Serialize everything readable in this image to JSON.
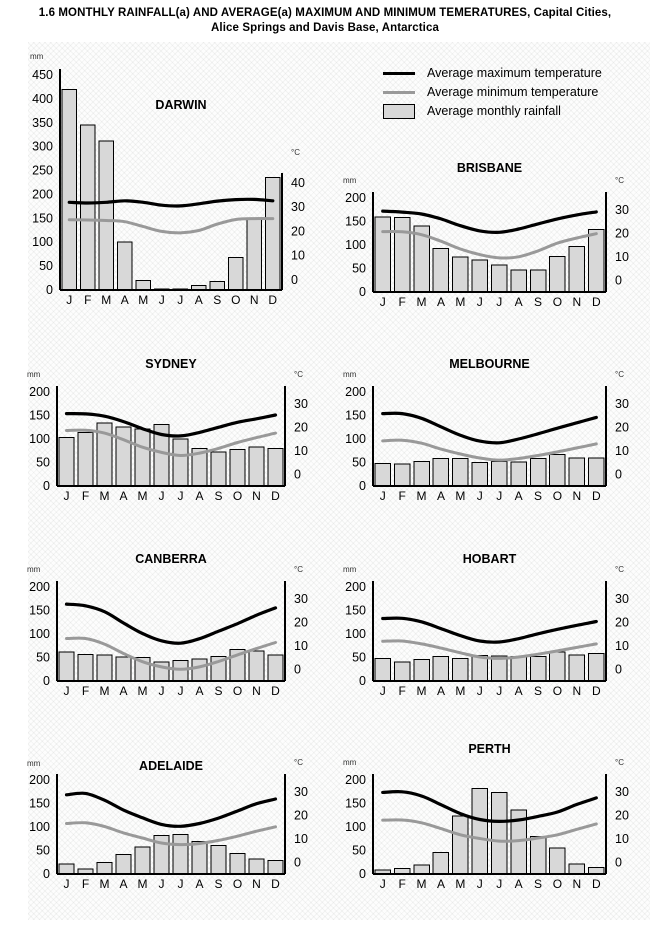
{
  "page_title": {
    "line1": "1.6 MONTHLY RAINFALL(a) AND AVERAGE(a) MAXIMUM AND MINIMUM TEMERATURES, Capital Cities,",
    "line2": "Alice Springs and Davis Base, Antarctica"
  },
  "legend": {
    "max_label": "Average maximum temperature",
    "min_label": "Average minimum temperature",
    "rain_label": "Average monthly rainfall"
  },
  "months": [
    "J",
    "F",
    "M",
    "A",
    "M",
    "J",
    "J",
    "A",
    "S",
    "O",
    "N",
    "D"
  ],
  "units": {
    "left": "mm",
    "right": "°C"
  },
  "colors": {
    "max_line": "#000000",
    "min_line": "#999999",
    "bar_fill": "#d8d8d8",
    "bar_stroke": "#000000",
    "axis": "#000000",
    "panel_bg": "#fdfdfd"
  },
  "chart_data": [
    {
      "type": "bar+line",
      "name": "DARWIN",
      "left_axis": {
        "label": "mm",
        "ticks": [
          0,
          50,
          100,
          150,
          200,
          250,
          300,
          350,
          400,
          450
        ],
        "max": 450
      },
      "right_axis": {
        "label": "°C",
        "ticks": [
          0,
          10,
          20,
          30,
          40
        ],
        "zero_mm": 21,
        "mm_per_deg": 5.08
      },
      "rainfall_mm": [
        420,
        345,
        312,
        100,
        20,
        2,
        1,
        9,
        18,
        68,
        150,
        235
      ],
      "tmax_c": [
        32.0,
        31.7,
        32.0,
        32.6,
        32.0,
        30.8,
        30.5,
        31.4,
        32.5,
        33.1,
        33.2,
        32.6
      ],
      "tmin_c": [
        24.8,
        24.7,
        24.5,
        24.0,
        22.0,
        20.0,
        19.4,
        20.4,
        23.0,
        24.9,
        25.3,
        25.3
      ]
    },
    {
      "type": "bar+line",
      "name": "BRISBANE",
      "left_axis": {
        "label": "mm",
        "ticks": [
          0,
          50,
          100,
          150,
          200
        ],
        "max": 200
      },
      "right_axis": {
        "label": "°C",
        "ticks": [
          0,
          10,
          20,
          30
        ],
        "zero_mm": 25,
        "mm_per_deg": 5
      },
      "rainfall_mm": [
        160,
        158,
        140,
        93,
        74,
        68,
        57,
        47,
        47,
        76,
        97,
        133
      ],
      "tmax_c": [
        29.4,
        29.0,
        28.2,
        26.1,
        23.2,
        21.0,
        20.4,
        21.8,
        24.0,
        26.1,
        27.8,
        29.1
      ],
      "tmin_c": [
        20.7,
        20.6,
        19.4,
        16.6,
        13.3,
        10.9,
        9.5,
        10.0,
        12.5,
        15.8,
        18.0,
        19.8
      ]
    },
    {
      "type": "bar+line",
      "name": "SYDNEY",
      "left_axis": {
        "label": "mm",
        "ticks": [
          0,
          50,
          100,
          150,
          200
        ],
        "max": 200
      },
      "right_axis": {
        "label": "°C",
        "ticks": [
          0,
          10,
          20,
          30
        ],
        "zero_mm": 25,
        "mm_per_deg": 5
      },
      "rainfall_mm": [
        103,
        114,
        134,
        126,
        121,
        131,
        100,
        80,
        72,
        78,
        83,
        80
      ],
      "tmax_c": [
        25.8,
        25.7,
        24.7,
        22.4,
        19.4,
        16.9,
        16.3,
        17.8,
        20.0,
        22.1,
        23.6,
        25.2
      ],
      "tmin_c": [
        18.6,
        18.7,
        17.5,
        14.7,
        11.5,
        9.3,
        8.0,
        9.0,
        11.0,
        13.5,
        15.6,
        17.5
      ]
    },
    {
      "type": "bar+line",
      "name": "MELBOURNE",
      "left_axis": {
        "label": "mm",
        "ticks": [
          0,
          50,
          100,
          150,
          200
        ],
        "max": 200
      },
      "right_axis": {
        "label": "°C",
        "ticks": [
          0,
          10,
          20,
          30
        ],
        "zero_mm": 25,
        "mm_per_deg": 5
      },
      "rainfall_mm": [
        48,
        47,
        52,
        58,
        58,
        50,
        52,
        51,
        59,
        67,
        60,
        60
      ],
      "tmax_c": [
        25.8,
        25.8,
        23.8,
        20.2,
        16.6,
        14.1,
        13.4,
        15.0,
        17.2,
        19.6,
        21.9,
        24.2
      ],
      "tmin_c": [
        14.2,
        14.5,
        13.2,
        10.7,
        8.6,
        6.9,
        6.0,
        6.7,
        8.0,
        9.5,
        11.2,
        12.9
      ]
    },
    {
      "type": "bar+line",
      "name": "CANBERRA",
      "left_axis": {
        "label": "mm",
        "ticks": [
          0,
          50,
          100,
          150,
          200
        ],
        "max": 200
      },
      "right_axis": {
        "label": "°C",
        "ticks": [
          0,
          10,
          20,
          30
        ],
        "zero_mm": 25,
        "mm_per_deg": 5
      },
      "rainfall_mm": [
        62,
        56,
        55,
        51,
        50,
        40,
        44,
        47,
        52,
        67,
        64,
        55
      ],
      "tmax_c": [
        27.7,
        27.0,
        24.5,
        19.7,
        15.2,
        12.1,
        11.1,
        13.0,
        16.2,
        19.4,
        23.0,
        26.1
      ],
      "tmin_c": [
        13.1,
        13.1,
        10.7,
        6.7,
        3.2,
        1.0,
        0.0,
        1.0,
        3.3,
        6.1,
        8.8,
        11.4
      ]
    },
    {
      "type": "bar+line",
      "name": "HOBART",
      "left_axis": {
        "label": "mm",
        "ticks": [
          0,
          50,
          100,
          150,
          200
        ],
        "max": 200
      },
      "right_axis": {
        "label": "°C",
        "ticks": [
          0,
          10,
          20,
          30
        ],
        "zero_mm": 25,
        "mm_per_deg": 5
      },
      "rainfall_mm": [
        48,
        40,
        46,
        52,
        48,
        54,
        53,
        52,
        52,
        62,
        55,
        58
      ],
      "tmax_c": [
        21.6,
        21.7,
        20.2,
        17.3,
        14.3,
        12.0,
        11.6,
        13.0,
        15.1,
        17.0,
        18.7,
        20.3
      ],
      "tmin_c": [
        11.9,
        12.0,
        10.8,
        9.0,
        7.0,
        5.2,
        4.6,
        5.2,
        6.4,
        7.8,
        9.3,
        10.8
      ]
    },
    {
      "type": "bar+line",
      "name": "ADELAIDE",
      "left_axis": {
        "label": "mm",
        "ticks": [
          0,
          50,
          100,
          150,
          200
        ],
        "max": 200
      },
      "right_axis": {
        "label": "°C",
        "ticks": [
          0,
          10,
          20,
          30
        ],
        "zero_mm": 25,
        "mm_per_deg": 5
      },
      "rainfall_mm": [
        21,
        11,
        25,
        41,
        57,
        82,
        84,
        69,
        61,
        44,
        32,
        29
      ],
      "tmax_c": [
        28.7,
        29.3,
        26.4,
        22.2,
        18.9,
        16.1,
        15.3,
        16.5,
        18.8,
        21.8,
        24.9,
        26.9
      ],
      "tmin_c": [
        16.5,
        16.8,
        15.2,
        12.5,
        10.3,
        8.2,
        7.5,
        8.0,
        9.3,
        11.1,
        13.2,
        15.1
      ]
    },
    {
      "type": "bar+line",
      "name": "PERTH",
      "left_axis": {
        "label": "mm",
        "ticks": [
          0,
          50,
          100,
          150,
          200
        ],
        "max": 200
      },
      "right_axis": {
        "label": "°C",
        "ticks": [
          0,
          10,
          20,
          30
        ],
        "zero_mm": 25,
        "mm_per_deg": 5
      },
      "rainfall_mm": [
        8,
        12,
        19,
        46,
        123,
        182,
        173,
        136,
        80,
        55,
        21,
        14
      ],
      "tmax_c": [
        29.7,
        30.0,
        28.2,
        24.5,
        20.7,
        18.2,
        17.4,
        18.0,
        19.5,
        21.4,
        24.6,
        27.4
      ],
      "tmin_c": [
        17.9,
        18.0,
        16.8,
        14.3,
        11.7,
        10.1,
        9.0,
        9.2,
        10.3,
        11.7,
        14.0,
        16.3
      ]
    }
  ]
}
